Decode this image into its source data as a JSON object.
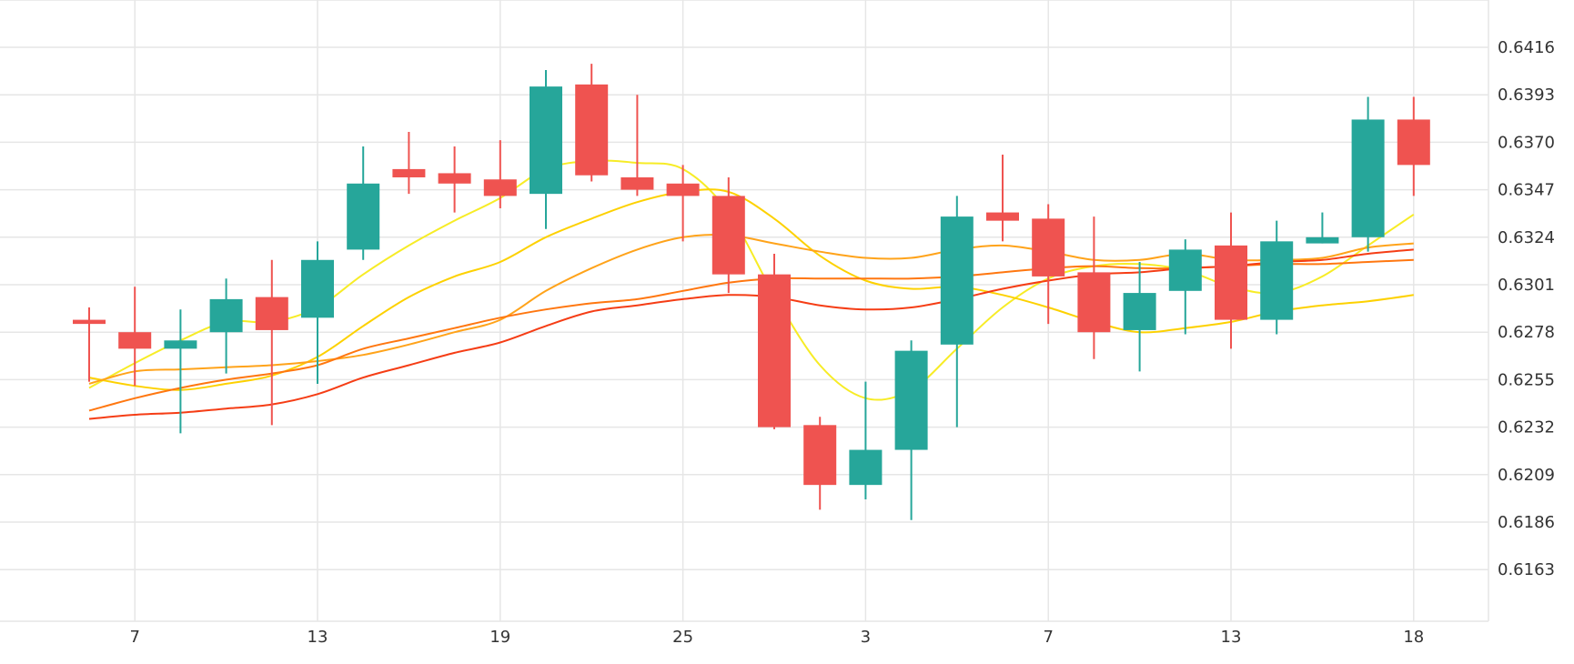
{
  "chart_data": {
    "type": "candlestick",
    "title": "",
    "xlabel": "",
    "ylabel": "",
    "ylim": [
      0.614,
      0.6436
    ],
    "y_ticks": [
      0.6416,
      0.6393,
      0.637,
      0.6347,
      0.6324,
      0.6301,
      0.6278,
      0.6255,
      0.6232,
      0.6209,
      0.6186,
      0.6163
    ],
    "y_tick_labels": [
      "0.6416",
      "0.6393",
      "0.6370",
      "0.6347",
      "0.6324",
      "0.6301",
      "0.6278",
      "0.6255",
      "0.6232",
      "0.6209",
      "0.6186",
      "0.6163"
    ],
    "x_ticks": [
      {
        "candle": 1,
        "label": "7"
      },
      {
        "candle": 5,
        "label": "13"
      },
      {
        "candle": 9,
        "label": "19"
      },
      {
        "candle": 13,
        "label": "25"
      },
      {
        "candle": 17,
        "label": "3"
      },
      {
        "candle": 21,
        "label": "7"
      },
      {
        "candle": 25,
        "label": "13"
      },
      {
        "candle": 29,
        "label": "18"
      }
    ],
    "grid": true,
    "up_color": "#26a69a",
    "down_color": "#ef5350",
    "candles": [
      {
        "open": 0.6284,
        "high": 0.629,
        "low": 0.6254,
        "close": 0.6282
      },
      {
        "open": 0.6278,
        "high": 0.63,
        "low": 0.6252,
        "close": 0.627
      },
      {
        "open": 0.627,
        "high": 0.6289,
        "low": 0.6229,
        "close": 0.6274
      },
      {
        "open": 0.6278,
        "high": 0.6304,
        "low": 0.6258,
        "close": 0.6294
      },
      {
        "open": 0.6295,
        "high": 0.6313,
        "low": 0.6233,
        "close": 0.6279
      },
      {
        "open": 0.6285,
        "high": 0.6322,
        "low": 0.6253,
        "close": 0.6313
      },
      {
        "open": 0.6318,
        "high": 0.6368,
        "low": 0.6313,
        "close": 0.635
      },
      {
        "open": 0.6357,
        "high": 0.6375,
        "low": 0.6345,
        "close": 0.6353
      },
      {
        "open": 0.6355,
        "high": 0.6368,
        "low": 0.6336,
        "close": 0.635
      },
      {
        "open": 0.6352,
        "high": 0.6371,
        "low": 0.6338,
        "close": 0.6344
      },
      {
        "open": 0.6345,
        "high": 0.6405,
        "low": 0.6328,
        "close": 0.6397
      },
      {
        "open": 0.6398,
        "high": 0.6408,
        "low": 0.6351,
        "close": 0.6354
      },
      {
        "open": 0.6353,
        "high": 0.6393,
        "low": 0.6344,
        "close": 0.6347
      },
      {
        "open": 0.635,
        "high": 0.6359,
        "low": 0.6322,
        "close": 0.6344
      },
      {
        "open": 0.6344,
        "high": 0.6353,
        "low": 0.6297,
        "close": 0.6306
      },
      {
        "open": 0.6306,
        "high": 0.6316,
        "low": 0.6231,
        "close": 0.6232
      },
      {
        "open": 0.6233,
        "high": 0.6237,
        "low": 0.6192,
        "close": 0.6204
      },
      {
        "open": 0.6204,
        "high": 0.6254,
        "low": 0.6197,
        "close": 0.6221
      },
      {
        "open": 0.6221,
        "high": 0.6274,
        "low": 0.6187,
        "close": 0.6269
      },
      {
        "open": 0.6272,
        "high": 0.6344,
        "low": 0.6232,
        "close": 0.6334
      },
      {
        "open": 0.6336,
        "high": 0.6364,
        "low": 0.6322,
        "close": 0.6332
      },
      {
        "open": 0.6333,
        "high": 0.634,
        "low": 0.6282,
        "close": 0.6305
      },
      {
        "open": 0.6307,
        "high": 0.6334,
        "low": 0.6265,
        "close": 0.6278
      },
      {
        "open": 0.6279,
        "high": 0.6312,
        "low": 0.6259,
        "close": 0.6297
      },
      {
        "open": 0.6298,
        "high": 0.6323,
        "low": 0.6277,
        "close": 0.6318
      },
      {
        "open": 0.632,
        "high": 0.6336,
        "low": 0.627,
        "close": 0.6284
      },
      {
        "open": 0.6284,
        "high": 0.6332,
        "low": 0.6277,
        "close": 0.6322
      },
      {
        "open": 0.6321,
        "high": 0.6336,
        "low": 0.6321,
        "close": 0.6324
      },
      {
        "open": 0.6324,
        "high": 0.6392,
        "low": 0.6317,
        "close": 0.6381
      },
      {
        "open": 0.6381,
        "high": 0.6392,
        "low": 0.6344,
        "close": 0.6359
      }
    ],
    "series": [
      {
        "color": "#f7ec26",
        "values": [
          0.6251,
          0.6263,
          0.6274,
          0.6283,
          0.6283,
          0.629,
          0.6306,
          0.632,
          0.6332,
          0.6343,
          0.6357,
          0.6361,
          0.636,
          0.6357,
          0.6336,
          0.6296,
          0.6262,
          0.6246,
          0.625,
          0.627,
          0.629,
          0.6304,
          0.631,
          0.6311,
          0.6308,
          0.63,
          0.6297,
          0.6305,
          0.632,
          0.6335
        ]
      },
      {
        "color": "#fdd100",
        "values": [
          0.6256,
          0.6252,
          0.625,
          0.6253,
          0.6257,
          0.6266,
          0.6281,
          0.6295,
          0.6305,
          0.6312,
          0.6324,
          0.6333,
          0.6341,
          0.6346,
          0.6346,
          0.6333,
          0.6315,
          0.6303,
          0.6299,
          0.63,
          0.6296,
          0.629,
          0.6283,
          0.6278,
          0.628,
          0.6283,
          0.6288,
          0.6291,
          0.6293,
          0.6296
        ]
      },
      {
        "color": "#ffa31a",
        "values": [
          0.6253,
          0.6259,
          0.626,
          0.6261,
          0.6262,
          0.6264,
          0.6267,
          0.6272,
          0.6278,
          0.6284,
          0.6298,
          0.6309,
          0.6318,
          0.6324,
          0.6325,
          0.6321,
          0.6317,
          0.6314,
          0.6314,
          0.6318,
          0.632,
          0.6317,
          0.6313,
          0.6313,
          0.6316,
          0.6313,
          0.6313,
          0.6314,
          0.6319,
          0.6321
        ]
      },
      {
        "color": "#ff7710",
        "values": [
          0.624,
          0.6246,
          0.6251,
          0.6255,
          0.6258,
          0.6262,
          0.627,
          0.6275,
          0.628,
          0.6285,
          0.6289,
          0.6292,
          0.6294,
          0.6298,
          0.6302,
          0.6304,
          0.6304,
          0.6304,
          0.6304,
          0.6305,
          0.6307,
          0.6309,
          0.631,
          0.6309,
          0.6309,
          0.631,
          0.6311,
          0.6311,
          0.6312,
          0.6313
        ]
      },
      {
        "color": "#f53d15",
        "values": [
          0.6236,
          0.6238,
          0.6239,
          0.6241,
          0.6243,
          0.6248,
          0.6256,
          0.6262,
          0.6268,
          0.6273,
          0.6281,
          0.6288,
          0.6291,
          0.6294,
          0.6296,
          0.6295,
          0.6291,
          0.6289,
          0.629,
          0.6294,
          0.6299,
          0.6303,
          0.6306,
          0.6307,
          0.6309,
          0.631,
          0.6312,
          0.6313,
          0.6316,
          0.6318
        ]
      }
    ]
  }
}
